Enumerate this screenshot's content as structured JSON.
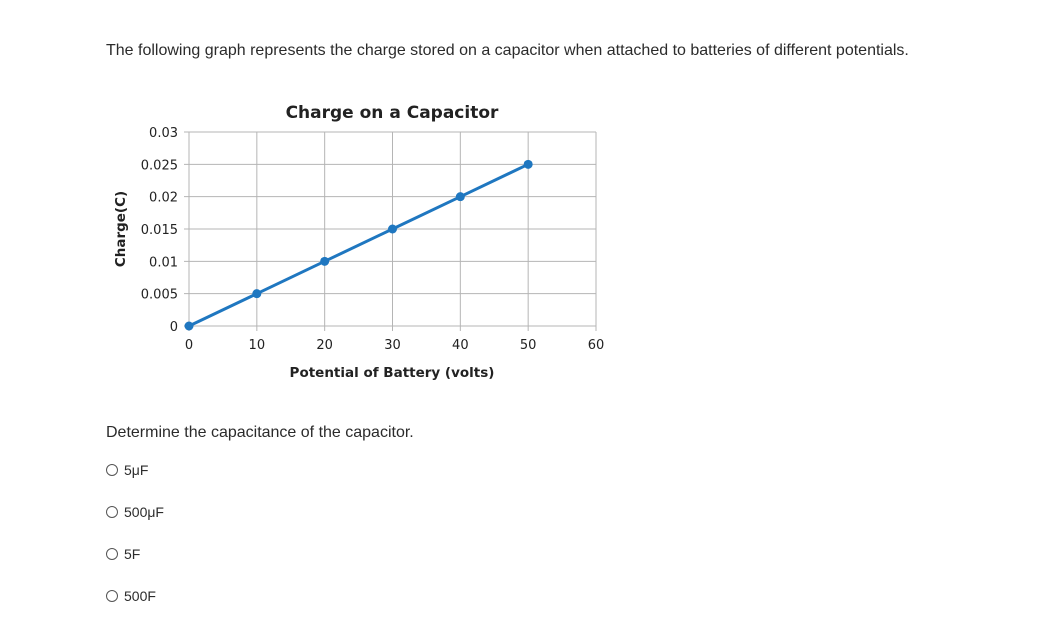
{
  "intro_text": "The following graph represents the charge stored on a capacitor when attached to batteries of different potentials.",
  "question_text": "Determine the capacitance of the capacitor.",
  "options": [
    {
      "label": "5μF"
    },
    {
      "label": "500μF"
    },
    {
      "label": "5F"
    },
    {
      "label": "500F"
    }
  ],
  "colors": {
    "series_line": "#1f77c0",
    "grid": "#b5b5b5",
    "text": "#2b2b2b"
  },
  "chart_data": {
    "type": "line",
    "title": "Charge on a Capacitor",
    "xlabel": "Potential of Battery (volts)",
    "ylabel": "Charge(C)",
    "xlim": [
      0,
      60
    ],
    "ylim": [
      0,
      0.03
    ],
    "x_ticks": [
      "0",
      "10",
      "20",
      "30",
      "40",
      "50",
      "60"
    ],
    "y_ticks": [
      "0",
      "0.005",
      "0.01",
      "0.015",
      "0.02",
      "0.025",
      "0.03"
    ],
    "grid": true,
    "series": [
      {
        "x": [
          0,
          10,
          20,
          30,
          40,
          50
        ],
        "values": [
          0,
          0.005,
          0.01,
          0.015,
          0.02,
          0.025
        ]
      }
    ]
  }
}
